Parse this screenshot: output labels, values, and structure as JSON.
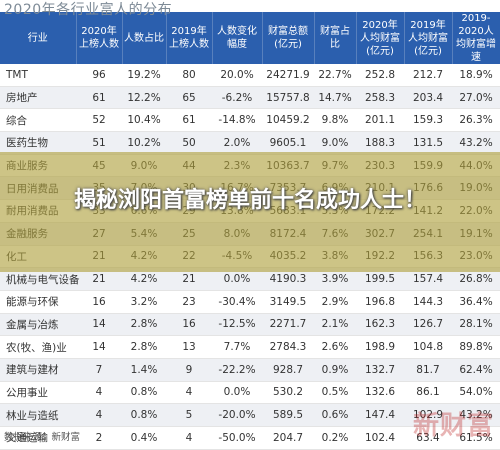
{
  "title": "2020年各行业富人的分布",
  "headline": "揭秘浏阳首富榜单前十名成功人士！",
  "source": "数据来源：新财富",
  "watermark": "新财富",
  "colors": {
    "header_bg": "#2b5fae",
    "overlay": "#b4a03c"
  },
  "headers": [
    "行业",
    "2020年上榜人数",
    "人数占比",
    "2019年上榜人数",
    "人数变化幅度",
    "财富总额(亿元)",
    "财富占比",
    "2020年人均财富(亿元)",
    "2019年人均财富(亿元)",
    "2019-2020人均财富增速"
  ],
  "rows": [
    [
      "TMT",
      "96",
      "19.2%",
      "80",
      "20.0%",
      "24271.9",
      "22.7%",
      "252.8",
      "212.7",
      "18.9%"
    ],
    [
      "房地产",
      "61",
      "12.2%",
      "65",
      "-6.2%",
      "15757.8",
      "14.7%",
      "258.3",
      "203.4",
      "27.0%"
    ],
    [
      "综合",
      "52",
      "10.4%",
      "61",
      "-14.8%",
      "10459.2",
      "9.8%",
      "201.1",
      "159.3",
      "26.3%"
    ],
    [
      "医药生物",
      "51",
      "10.2%",
      "50",
      "2.0%",
      "9605.1",
      "9.0%",
      "188.3",
      "131.5",
      "43.2%"
    ],
    [
      "商业服务",
      "45",
      "9.0%",
      "44",
      "2.3%",
      "10363.7",
      "9.7%",
      "230.3",
      "159.9",
      "44.0%"
    ],
    [
      "日用消费品",
      "35",
      "7.0%",
      "30",
      "16.7%",
      "7353.7",
      "6.9%",
      "210.1",
      "176.6",
      "19.0%"
    ],
    [
      "耐用消费品",
      "33",
      "6.6%",
      "29",
      "13.8%",
      "5683.1",
      "5.3%",
      "172.2",
      "141.2",
      "22.0%"
    ],
    [
      "金融服务",
      "27",
      "5.4%",
      "25",
      "8.0%",
      "8172.4",
      "7.6%",
      "302.7",
      "254.1",
      "19.1%"
    ],
    [
      "化工",
      "21",
      "4.2%",
      "22",
      "-4.5%",
      "4035.2",
      "3.8%",
      "192.2",
      "156.3",
      "23.0%"
    ],
    [
      "机械与电气设备",
      "21",
      "4.2%",
      "21",
      "0.0%",
      "4190.3",
      "3.9%",
      "199.5",
      "157.4",
      "26.8%"
    ],
    [
      "能源与环保",
      "16",
      "3.2%",
      "23",
      "-30.4%",
      "3149.5",
      "2.9%",
      "196.8",
      "144.3",
      "36.4%"
    ],
    [
      "金属与冶炼",
      "14",
      "2.8%",
      "16",
      "-12.5%",
      "2271.7",
      "2.1%",
      "162.3",
      "126.7",
      "28.1%"
    ],
    [
      "农(牧、渔)业",
      "14",
      "2.8%",
      "13",
      "7.7%",
      "2784.3",
      "2.6%",
      "198.9",
      "104.8",
      "89.8%"
    ],
    [
      "建筑与建材",
      "7",
      "1.4%",
      "9",
      "-22.2%",
      "928.7",
      "0.9%",
      "132.7",
      "81.7",
      "62.4%"
    ],
    [
      "公用事业",
      "4",
      "0.8%",
      "4",
      "0.0%",
      "530.2",
      "0.5%",
      "132.6",
      "86.1",
      "54.0%"
    ],
    [
      "林业与造纸",
      "4",
      "0.8%",
      "5",
      "-20.0%",
      "589.5",
      "0.6%",
      "147.4",
      "102.9",
      "43.2%"
    ],
    [
      "交通运输",
      "2",
      "0.4%",
      "4",
      "-50.0%",
      "204.7",
      "0.2%",
      "102.4",
      "63.4",
      "61.5%"
    ]
  ]
}
